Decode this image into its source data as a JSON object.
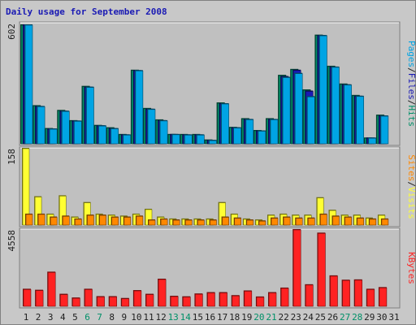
{
  "title": "Daily usage for September 2008",
  "colors": {
    "background": "#c8c8c8",
    "panel": "#c0c0c0",
    "title": "#1a1ab4",
    "pages": "#00a4e4",
    "files": "#1a1ab4",
    "hits": "#009068",
    "visits": "#ffff33",
    "sites": "#ff8800",
    "kbytes": "#ff2222",
    "weekend_label": "#009068",
    "day_label": "#202020"
  },
  "chart_data": [
    {
      "type": "bar",
      "panel": "hits-files-pages",
      "ymax_label": "602",
      "ylim": [
        0,
        602
      ],
      "axis_label_parts": [
        "Pages",
        "/",
        "Files",
        "/",
        "Hits"
      ],
      "categories": [
        "1",
        "2",
        "3",
        "4",
        "5",
        "6",
        "7",
        "8",
        "9",
        "10",
        "11",
        "12",
        "13",
        "14",
        "15",
        "16",
        "17",
        "18",
        "19",
        "20",
        "21",
        "22",
        "23",
        "24",
        "25",
        "26",
        "27",
        "28",
        "29",
        "30",
        "31"
      ],
      "series": [
        {
          "name": "Hits",
          "values": [
            602,
            192,
            76,
            168,
            116,
            290,
            92,
            80,
            46,
            372,
            178,
            120,
            46,
            46,
            46,
            18,
            206,
            82,
            126,
            66,
            126,
            346,
            376,
            272,
            550,
            392,
            302,
            244,
            28,
            144,
            0
          ]
        },
        {
          "name": "Files",
          "values": [
            602,
            188,
            74,
            164,
            114,
            286,
            90,
            76,
            44,
            370,
            174,
            116,
            46,
            44,
            44,
            16,
            202,
            80,
            122,
            64,
            122,
            340,
            372,
            266,
            548,
            388,
            298,
            240,
            28,
            140,
            0
          ]
        },
        {
          "name": "Pages",
          "values": [
            602,
            188,
            74,
            164,
            114,
            286,
            90,
            76,
            44,
            370,
            174,
            116,
            46,
            44,
            44,
            16,
            202,
            80,
            122,
            64,
            122,
            336,
            356,
            238,
            548,
            388,
            298,
            240,
            28,
            140,
            0
          ]
        }
      ]
    },
    {
      "type": "bar",
      "panel": "visits-sites",
      "ymax_label": "158",
      "ylim": [
        0,
        158
      ],
      "axis_label_parts": [
        "Sites",
        "/",
        "Visits"
      ],
      "categories": [
        "1",
        "2",
        "3",
        "4",
        "5",
        "6",
        "7",
        "8",
        "9",
        "10",
        "11",
        "12",
        "13",
        "14",
        "15",
        "16",
        "17",
        "18",
        "19",
        "20",
        "21",
        "22",
        "23",
        "24",
        "25",
        "26",
        "27",
        "28",
        "29",
        "30",
        "31"
      ],
      "series": [
        {
          "name": "Visits",
          "values": [
            158,
            58,
            22,
            60,
            16,
            46,
            22,
            20,
            18,
            22,
            32,
            16,
            12,
            12,
            12,
            12,
            46,
            22,
            12,
            10,
            20,
            22,
            20,
            20,
            56,
            30,
            20,
            20,
            14,
            20,
            0
          ]
        },
        {
          "name": "Sites",
          "values": [
            22,
            22,
            16,
            18,
            12,
            20,
            20,
            16,
            16,
            18,
            10,
            12,
            10,
            10,
            10,
            10,
            16,
            14,
            10,
            8,
            14,
            16,
            14,
            14,
            22,
            18,
            16,
            14,
            12,
            12,
            0
          ]
        }
      ]
    },
    {
      "type": "bar",
      "panel": "kbytes",
      "ymax_label": "4558",
      "ylim": [
        0,
        4558
      ],
      "axis_label_parts": [
        "KBytes"
      ],
      "categories": [
        "1",
        "2",
        "3",
        "4",
        "5",
        "6",
        "7",
        "8",
        "9",
        "10",
        "11",
        "12",
        "13",
        "14",
        "15",
        "16",
        "17",
        "18",
        "19",
        "20",
        "21",
        "22",
        "23",
        "24",
        "25",
        "26",
        "27",
        "28",
        "29",
        "30",
        "31"
      ],
      "series": [
        {
          "name": "KBytes",
          "values": [
            1000,
            940,
            2020,
            700,
            480,
            1000,
            560,
            560,
            450,
            920,
            700,
            1600,
            580,
            550,
            720,
            800,
            800,
            620,
            900,
            540,
            800,
            1070,
            4560,
            1270,
            4350,
            1800,
            1540,
            1560,
            1000,
            1100,
            0
          ]
        }
      ]
    }
  ],
  "weekend_days": [
    "6",
    "7",
    "13",
    "14",
    "20",
    "21",
    "27",
    "28"
  ]
}
